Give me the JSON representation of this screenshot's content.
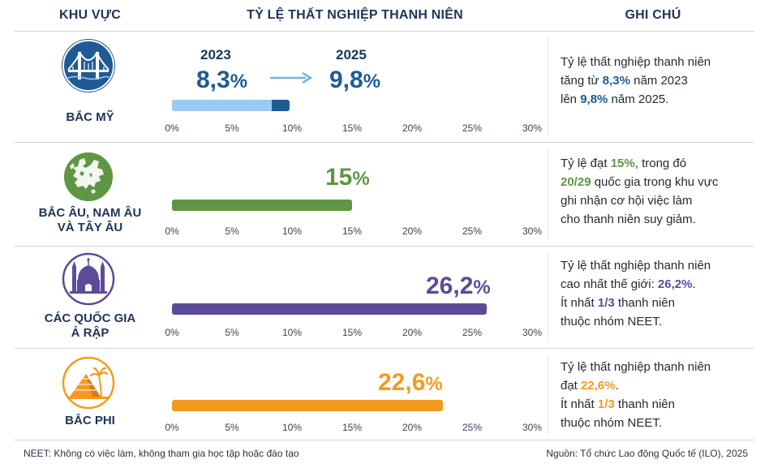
{
  "header": {
    "region": "KHU VỰC",
    "rate": "TỶ LỆ THẤT NGHIỆP THANH NIÊN",
    "note": "GHI CHÚ"
  },
  "axis_ticks": [
    "0%",
    "5%",
    "10%",
    "15%",
    "20%",
    "25%",
    "30%"
  ],
  "colors": {
    "north_america_dark": "#1f5a96",
    "north_america_light": "#9ccaf0",
    "europe": "#5f9644",
    "arab": "#5c4b99",
    "africa": "#f39a1e",
    "header": "#1d3557"
  },
  "rows": [
    {
      "region": [
        "BẮC MỸ"
      ],
      "icon": "golden-gate-bridge-icon",
      "year_from": "2023",
      "value_from": "8,3",
      "year_to": "2025",
      "value_to": "9,8",
      "pct": "%",
      "note": [
        [
          "Tỷ lệ thất nghiệp thanh niên"
        ],
        [
          "tăng từ ",
          "8,3%",
          " năm 2023"
        ],
        [
          "lên ",
          "9,8%",
          " năm 2025."
        ]
      ]
    },
    {
      "region": [
        "BẮC ÂU, NAM ÂU",
        "VÀ TÂY ÂU"
      ],
      "icon": "europe-map-icon",
      "value": "15",
      "pct": "%",
      "note": [
        [
          "Tỷ lệ đạt ",
          "15%",
          ", trong đó"
        ],
        [
          "",
          "20/29",
          " quốc gia trong khu vực"
        ],
        [
          "ghi nhận cơ hội việc làm"
        ],
        [
          "cho thanh niên suy giảm."
        ]
      ]
    },
    {
      "region": [
        "CÁC QUỐC GIA",
        "Ả RẬP"
      ],
      "icon": "mosque-icon",
      "value": "26,2",
      "pct": "%",
      "note": [
        [
          "Tỷ lệ thất nghiệp thanh niên"
        ],
        [
          "cao nhất thế giới: ",
          "26,2%",
          "."
        ],
        [
          "Ít nhất ",
          "1/3",
          " thanh niên"
        ],
        [
          "thuộc nhóm NEET."
        ]
      ]
    },
    {
      "region": [
        "BẮC PHI"
      ],
      "icon": "pyramid-palm-icon",
      "value": "22,6",
      "pct": "%",
      "note": [
        [
          "Tỷ lệ thất nghiệp thanh niên"
        ],
        [
          "đạt ",
          "22,6%",
          "."
        ],
        [
          "Ít nhất ",
          "1/3",
          " thanh niên"
        ],
        [
          "thuộc nhóm NEET."
        ]
      ]
    }
  ],
  "footer": {
    "left": "NEET: Không có việc làm, không tham gia học tập hoặc đào tạo",
    "right": "Nguồn: Tổ chức Lao động Quốc tế (ILO), 2025"
  },
  "chart_data": {
    "type": "bar",
    "orientation": "horizontal",
    "title": "TỶ LỆ THẤT NGHIỆP THANH NIÊN",
    "categories": [
      "BẮC MỸ",
      "BẮC ÂU, NAM ÂU VÀ TÂY ÂU",
      "CÁC QUỐC GIA Ả RẬP",
      "BẮC PHI"
    ],
    "series": [
      {
        "name": "2023",
        "values": [
          8.3,
          null,
          null,
          null
        ]
      },
      {
        "name": "2025",
        "values": [
          9.8,
          15,
          26.2,
          22.6
        ]
      }
    ],
    "xlim": [
      0,
      30
    ],
    "x_ticks": [
      0,
      5,
      10,
      15,
      20,
      25,
      30
    ],
    "x_tick_format": "percent",
    "grid": false,
    "legend": "none"
  }
}
